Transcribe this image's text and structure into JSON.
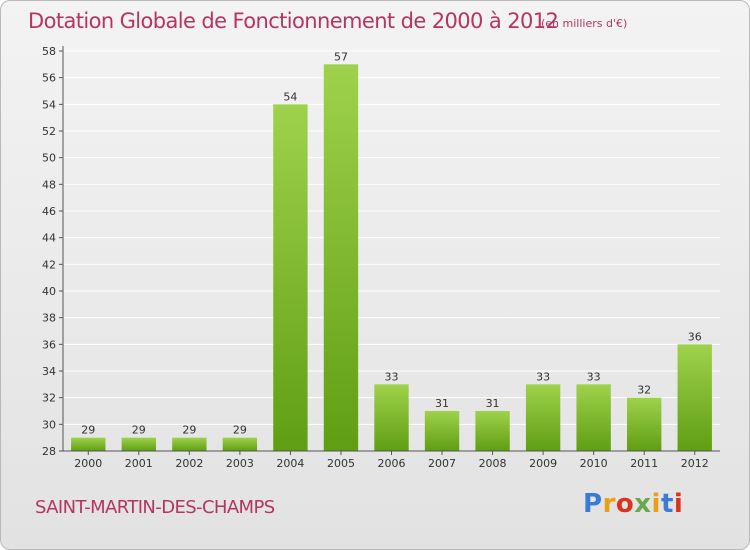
{
  "header": {
    "title": "Dotation Globale de Fonctionnement de 2000 à 2012",
    "unit_note": "(en milliers d'€)"
  },
  "commune_name": "SAINT-MARTIN-DES-CHAMPS",
  "logo_letters": [
    "P",
    "r",
    "o",
    "x",
    "i",
    "t",
    "i"
  ],
  "colors": {
    "bar_top": "#9fd24c",
    "bar_bottom": "#5f9e12",
    "title": "#b5355f",
    "grid": "#ffffff"
  },
  "chart_data": {
    "type": "bar",
    "title": "Dotation Globale de Fonctionnement de 2000 à 2012",
    "subtitle": "(en milliers d'€)",
    "categories": [
      "2000",
      "2001",
      "2002",
      "2003",
      "2004",
      "2005",
      "2006",
      "2007",
      "2008",
      "2009",
      "2010",
      "2011",
      "2012"
    ],
    "values": [
      29,
      29,
      29,
      29,
      54,
      57,
      33,
      31,
      31,
      33,
      33,
      32,
      36
    ],
    "yticks": [
      28,
      30,
      32,
      34,
      36,
      38,
      40,
      42,
      44,
      46,
      48,
      50,
      52,
      54,
      56,
      58
    ],
    "ylim": [
      28,
      58
    ],
    "grid": true,
    "xlabel": "",
    "ylabel": ""
  }
}
